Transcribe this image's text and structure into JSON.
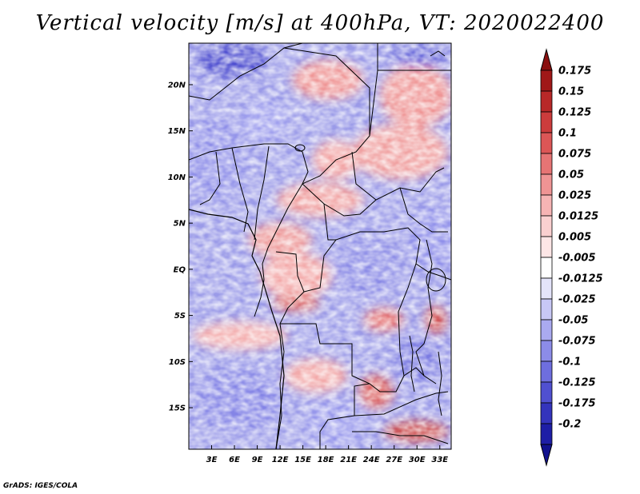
{
  "title": "Vertical velocity [m/s] at 400hPa, VT: 2020022400",
  "footer": "GrADS: IGES/COLA",
  "map": {
    "lat_range": [
      -19.5,
      24.5
    ],
    "lon_range": [
      0.0,
      34.5
    ],
    "lat_ticks": [
      {
        "value": 20,
        "label": "20N"
      },
      {
        "value": 15,
        "label": "15N"
      },
      {
        "value": 10,
        "label": "10N"
      },
      {
        "value": 5,
        "label": "5N"
      },
      {
        "value": 0,
        "label": "EQ"
      },
      {
        "value": -5,
        "label": "5S"
      },
      {
        "value": -10,
        "label": "10S"
      },
      {
        "value": -15,
        "label": "15S"
      }
    ],
    "lon_ticks": [
      {
        "value": 3,
        "label": "3E"
      },
      {
        "value": 6,
        "label": "6E"
      },
      {
        "value": 9,
        "label": "9E"
      },
      {
        "value": 12,
        "label": "12E"
      },
      {
        "value": 15,
        "label": "15E"
      },
      {
        "value": 18,
        "label": "18E"
      },
      {
        "value": 21,
        "label": "21E"
      },
      {
        "value": 24,
        "label": "24E"
      },
      {
        "value": 27,
        "label": "27E"
      },
      {
        "value": 30,
        "label": "30E"
      },
      {
        "value": 33,
        "label": "33E"
      }
    ]
  },
  "colorbar": {
    "levels": [
      {
        "label": "0.175",
        "color": "#a01818"
      },
      {
        "label": "0.15",
        "color": "#b82828"
      },
      {
        "label": "0.125",
        "color": "#cc3c3c"
      },
      {
        "label": "0.1",
        "color": "#dc5656"
      },
      {
        "label": "0.075",
        "color": "#e67474"
      },
      {
        "label": "0.05",
        "color": "#ef9494"
      },
      {
        "label": "0.025",
        "color": "#f6b4b4"
      },
      {
        "label": "0.0125",
        "color": "#fad0d0"
      },
      {
        "label": "0.005",
        "color": "#fde6e6"
      },
      {
        "label": "-0.005",
        "color": "#ffffff"
      },
      {
        "label": "-0.0125",
        "color": "#e4e4fa"
      },
      {
        "label": "-0.025",
        "color": "#c8c8f6"
      },
      {
        "label": "-0.05",
        "color": "#aaaaf0"
      },
      {
        "label": "-0.075",
        "color": "#8c8ce8"
      },
      {
        "label": "-0.1",
        "color": "#6e6ede"
      },
      {
        "label": "-0.125",
        "color": "#5050d0"
      },
      {
        "label": "-0.175",
        "color": "#3434bc"
      },
      {
        "label": "-0.2",
        "color": "#1e1ea6"
      }
    ],
    "top_color": "#8a1010",
    "bottom_color": "#12128e"
  }
}
